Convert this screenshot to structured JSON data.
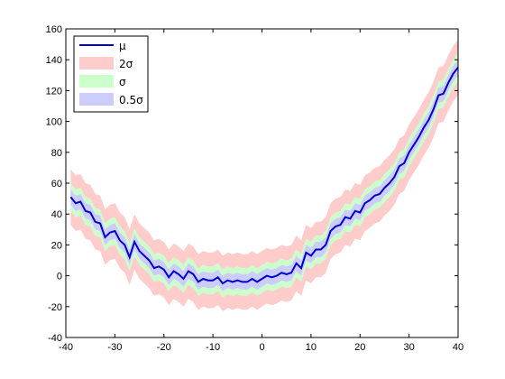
{
  "chart_data": {
    "type": "line",
    "title": "",
    "xlabel": "",
    "ylabel": "",
    "xlim": [
      -40,
      40
    ],
    "ylim": [
      -40,
      160
    ],
    "xticks": [
      -40,
      -30,
      -20,
      -10,
      0,
      10,
      20,
      30,
      40
    ],
    "yticks": [
      -40,
      -20,
      0,
      20,
      40,
      60,
      80,
      100,
      120,
      140,
      160
    ],
    "grid": false,
    "legend_position": "top-left",
    "legend": [
      {
        "label": "μ",
        "kind": "line",
        "color": "#0000cc"
      },
      {
        "label": "2σ",
        "kind": "band",
        "color": "#ffcccc"
      },
      {
        "label": "σ",
        "kind": "band",
        "color": "#ccffcc"
      },
      {
        "label": "0.5σ",
        "kind": "band",
        "color": "#ccccff"
      }
    ],
    "x": [
      -39,
      -38,
      -37,
      -36,
      -35,
      -34,
      -33,
      -32,
      -31,
      -30,
      -29,
      -28,
      -27,
      -26,
      -25,
      -24,
      -23,
      -22,
      -21,
      -20,
      -19,
      -18,
      -17,
      -16,
      -15,
      -14,
      -13,
      -12,
      -11,
      -10,
      -9,
      -8,
      -7,
      -6,
      -5,
      -4,
      -3,
      -2,
      -1,
      0,
      1,
      2,
      3,
      4,
      5,
      6,
      7,
      8,
      9,
      10,
      11,
      12,
      13,
      14,
      15,
      16,
      17,
      18,
      19,
      20,
      21,
      22,
      23,
      24,
      25,
      26,
      27,
      28,
      29,
      30,
      31,
      32,
      33,
      34,
      35,
      36,
      37,
      38,
      39,
      40
    ],
    "series": [
      {
        "name": "μ",
        "color": "#0000cc",
        "values": [
          51,
          47,
          48,
          42,
          41,
          35,
          34,
          25,
          28,
          29,
          23,
          20,
          12,
          22,
          16,
          13,
          10,
          5,
          6,
          4,
          -1,
          3,
          1,
          -2,
          3,
          1,
          -4,
          -2,
          -3,
          -3,
          -1,
          -5,
          -3,
          -4,
          -3,
          -4,
          -4,
          -2,
          -4,
          -2,
          0,
          -1,
          0,
          2,
          1,
          2,
          8,
          5,
          15,
          13,
          17,
          17,
          20,
          29,
          32,
          33,
          38,
          37,
          42,
          41,
          47,
          49,
          52,
          53,
          57,
          60,
          64,
          71,
          73,
          80,
          85,
          90,
          96,
          101,
          108,
          117,
          118,
          125,
          131,
          135
        ]
      }
    ],
    "bands": [
      {
        "name": "2σ",
        "color": "#ffcccc",
        "half_width": 18
      },
      {
        "name": "σ",
        "color": "#ccffcc",
        "half_width": 9
      },
      {
        "name": "0.5σ",
        "color": "#ccccff",
        "half_width": 5
      }
    ]
  }
}
